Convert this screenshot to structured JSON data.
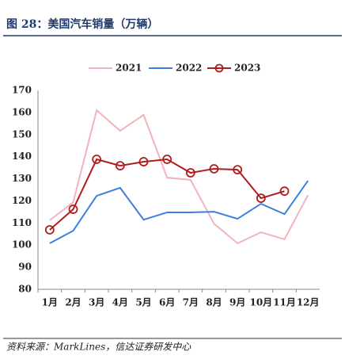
{
  "chart_data": {
    "type": "line",
    "title": "图 28：美国汽车销量（万辆）",
    "source": "资料来源：MarkLines，信达证券研发中心",
    "categories": [
      "1月",
      "2月",
      "3月",
      "4月",
      "5月",
      "6月",
      "7月",
      "8月",
      "9月",
      "10月",
      "11月",
      "12月"
    ],
    "series": [
      {
        "name": "2021",
        "color": "#f4b3b8",
        "marker": false,
        "values": [
          111.2,
          119.4,
          161,
          151.7,
          158.9,
          130.5,
          129.5,
          109.7,
          100.8,
          105.8,
          102.6,
          122.6
        ]
      },
      {
        "name": "2022",
        "color": "#3c7fe0",
        "marker": false,
        "values": [
          100.8,
          106.5,
          122.3,
          125.9,
          111.5,
          114.8,
          114.8,
          115.1,
          111.9,
          118.7,
          114,
          129.1
        ]
      },
      {
        "name": "2023",
        "color": "#b01d1d",
        "marker": true,
        "values": [
          106.9,
          116.2,
          138.8,
          135.9,
          137.7,
          138.8,
          132.7,
          134.5,
          134.1,
          121.2,
          124.4,
          null
        ]
      }
    ],
    "ylim": [
      80,
      170
    ],
    "yticks": [
      80,
      90,
      100,
      110,
      120,
      130,
      140,
      150,
      160,
      170
    ],
    "legend": "top"
  }
}
